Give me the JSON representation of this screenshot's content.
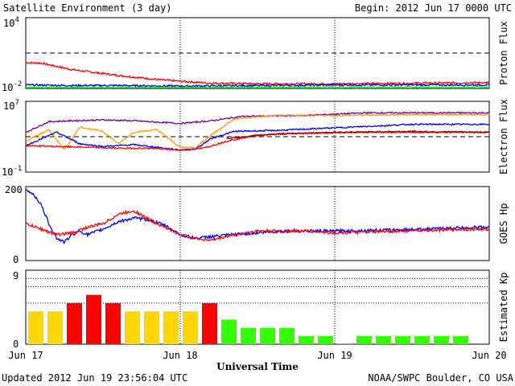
{
  "header": {
    "title": "Satellite Environment (3 day)",
    "begin": "Begin:  2012 Jun 17 0000 UTC"
  },
  "footer": {
    "updated": "Updated 2012 Jun 19 23:56:04 UTC",
    "credit": "NOAA/SWPC Boulder, CO USA"
  },
  "x_axis": {
    "title": "Universal Time",
    "ticks": [
      "Jun 17",
      "Jun 18",
      "Jun 19",
      "Jun 20"
    ]
  },
  "colors": {
    "red": "#ff0000",
    "blue": "#0000ff",
    "green": "#00ff00",
    "purple": "#7000a0",
    "orange": "#ff9900",
    "darkred": "#a00000",
    "kp_yellow": "#ffd700",
    "kp_red": "#ff0000",
    "kp_green": "#33ff00"
  },
  "chart_data": [
    {
      "type": "line",
      "panel": "proton",
      "ylabel": "Proton Flux",
      "scale": "log",
      "ylim_exp": [
        -2,
        4
      ],
      "ytick_labels": [
        {
          "base": "10",
          "exp": "4"
        },
        {
          "base": "10",
          "exp": "-2"
        }
      ],
      "threshold_exp": 1,
      "x_range_days": [
        0,
        3
      ],
      "series": [
        {
          "color": "red",
          "points": [
            [
              0,
              0.2
            ],
            [
              0.1,
              0.15
            ],
            [
              0.3,
              -0.4
            ],
            [
              0.6,
              -0.9
            ],
            [
              0.9,
              -1.3
            ],
            [
              1.2,
              -1.55
            ],
            [
              1.6,
              -1.6
            ],
            [
              2.0,
              -1.6
            ],
            [
              2.5,
              -1.55
            ],
            [
              3.0,
              -1.5
            ]
          ]
        },
        {
          "color": "blue",
          "points": [
            [
              0,
              -1.7
            ],
            [
              0.3,
              -1.75
            ],
            [
              0.6,
              -1.75
            ],
            [
              1.0,
              -1.8
            ],
            [
              1.5,
              -1.75
            ],
            [
              2.0,
              -1.7
            ],
            [
              2.5,
              -1.7
            ],
            [
              3.0,
              -1.7
            ]
          ]
        },
        {
          "color": "green",
          "points": [
            [
              0,
              -1.95
            ],
            [
              0.5,
              -1.95
            ],
            [
              1.0,
              -1.95
            ],
            [
              1.5,
              -1.92
            ],
            [
              2.0,
              -1.9
            ],
            [
              2.5,
              -1.9
            ],
            [
              3.0,
              -1.9
            ]
          ]
        }
      ]
    },
    {
      "type": "line",
      "panel": "electron",
      "ylabel": "Electron Flux",
      "scale": "log",
      "ylim_exp": [
        -1,
        7
      ],
      "ytick_labels": [
        {
          "base": "10",
          "exp": "7"
        },
        {
          "base": "10",
          "exp": "-1"
        }
      ],
      "threshold_exp": 3,
      "x_range_days": [
        0,
        3
      ],
      "series": [
        {
          "color": "purple",
          "points": [
            [
              0,
              3.5
            ],
            [
              0.15,
              4.7
            ],
            [
              0.3,
              4.8
            ],
            [
              0.5,
              4.9
            ],
            [
              0.7,
              4.8
            ],
            [
              1.0,
              4.5
            ],
            [
              1.2,
              4.8
            ],
            [
              1.4,
              5.3
            ],
            [
              1.8,
              5.4
            ],
            [
              2.2,
              5.7
            ],
            [
              2.6,
              5.7
            ],
            [
              3.0,
              5.7
            ]
          ]
        },
        {
          "color": "orange",
          "points": [
            [
              0,
              2.5
            ],
            [
              0.15,
              3.8
            ],
            [
              0.25,
              1.5
            ],
            [
              0.35,
              4.1
            ],
            [
              0.5,
              3.6
            ],
            [
              0.6,
              2.2
            ],
            [
              0.7,
              3.5
            ],
            [
              0.85,
              3.8
            ],
            [
              1.0,
              1.8
            ],
            [
              1.1,
              1.8
            ],
            [
              1.2,
              3.2
            ],
            [
              1.35,
              5.0
            ],
            [
              1.6,
              5.4
            ],
            [
              2.0,
              5.4
            ],
            [
              2.5,
              5.5
            ],
            [
              3.0,
              5.5
            ]
          ]
        },
        {
          "color": "blue",
          "points": [
            [
              0,
              2.0
            ],
            [
              0.2,
              3.5
            ],
            [
              0.35,
              2.2
            ],
            [
              0.5,
              1.9
            ],
            [
              0.7,
              2.1
            ],
            [
              1.0,
              1.5
            ],
            [
              1.1,
              1.6
            ],
            [
              1.2,
              2.8
            ],
            [
              1.35,
              3.6
            ],
            [
              1.6,
              3.7
            ],
            [
              2.0,
              4.0
            ],
            [
              2.5,
              4.4
            ],
            [
              3.0,
              4.4
            ]
          ]
        },
        {
          "color": "red",
          "points": [
            [
              0,
              2.0
            ],
            [
              0.2,
              1.9
            ],
            [
              0.4,
              1.8
            ],
            [
              0.6,
              1.7
            ],
            [
              0.8,
              1.7
            ],
            [
              1.0,
              1.5
            ],
            [
              1.15,
              1.7
            ],
            [
              1.3,
              2.5
            ],
            [
              1.5,
              3.2
            ],
            [
              1.8,
              3.4
            ],
            [
              2.2,
              3.5
            ],
            [
              2.6,
              3.5
            ],
            [
              3.0,
              3.5
            ]
          ]
        },
        {
          "color": "darkred",
          "points": [
            [
              1.3,
              2.8
            ],
            [
              1.6,
              3.3
            ],
            [
              2.0,
              3.5
            ],
            [
              2.5,
              3.6
            ],
            [
              3.0,
              3.5
            ]
          ]
        }
      ]
    },
    {
      "type": "line",
      "panel": "hp",
      "ylabel": "GOES Hp",
      "scale": "linear",
      "ylim": [
        0,
        200
      ],
      "ytick_labels": [
        "200",
        "0"
      ],
      "x_range_days": [
        0,
        3
      ],
      "series": [
        {
          "color": "blue",
          "points": [
            [
              0,
              190
            ],
            [
              0.05,
              180
            ],
            [
              0.1,
              150
            ],
            [
              0.15,
              100
            ],
            [
              0.2,
              60
            ],
            [
              0.25,
              50
            ],
            [
              0.3,
              70
            ],
            [
              0.35,
              80
            ],
            [
              0.4,
              70
            ],
            [
              0.5,
              85
            ],
            [
              0.6,
              105
            ],
            [
              0.7,
              115
            ],
            [
              0.8,
              110
            ],
            [
              0.9,
              95
            ],
            [
              1.0,
              70
            ],
            [
              1.1,
              60
            ],
            [
              1.2,
              65
            ],
            [
              1.35,
              70
            ],
            [
              1.5,
              75
            ],
            [
              1.7,
              80
            ],
            [
              2.0,
              80
            ],
            [
              2.3,
              82
            ],
            [
              2.6,
              85
            ],
            [
              2.9,
              90
            ],
            [
              3.0,
              90
            ]
          ]
        },
        {
          "color": "red",
          "points": [
            [
              0,
              100
            ],
            [
              0.1,
              85
            ],
            [
              0.2,
              70
            ],
            [
              0.3,
              75
            ],
            [
              0.4,
              90
            ],
            [
              0.5,
              100
            ],
            [
              0.6,
              125
            ],
            [
              0.7,
              135
            ],
            [
              0.8,
              110
            ],
            [
              0.9,
              90
            ],
            [
              1.0,
              70
            ],
            [
              1.1,
              60
            ],
            [
              1.2,
              55
            ],
            [
              1.35,
              70
            ],
            [
              1.5,
              80
            ],
            [
              1.8,
              80
            ],
            [
              2.0,
              75
            ],
            [
              2.3,
              78
            ],
            [
              2.6,
              82
            ],
            [
              2.9,
              85
            ],
            [
              3.0,
              84
            ]
          ]
        }
      ]
    },
    {
      "type": "bar",
      "panel": "kp",
      "ylabel": "Estimated Kp",
      "ylim": [
        0,
        9
      ],
      "ytick_labels": [
        "9",
        "0"
      ],
      "hlines": [
        5,
        7,
        8
      ],
      "values": [
        4,
        4,
        5,
        6,
        5,
        4,
        4,
        4,
        4,
        5,
        3,
        2,
        2,
        2,
        1,
        1,
        0,
        1,
        1,
        1,
        1,
        1,
        1
      ],
      "colors": [
        "kp_yellow",
        "kp_yellow",
        "kp_red",
        "kp_red",
        "kp_red",
        "kp_yellow",
        "kp_yellow",
        "kp_yellow",
        "kp_yellow",
        "kp_red",
        "kp_green",
        "kp_green",
        "kp_green",
        "kp_green",
        "kp_green",
        "kp_green",
        "kp_green",
        "kp_green",
        "kp_green",
        "kp_green",
        "kp_green",
        "kp_green",
        "kp_green"
      ]
    }
  ]
}
